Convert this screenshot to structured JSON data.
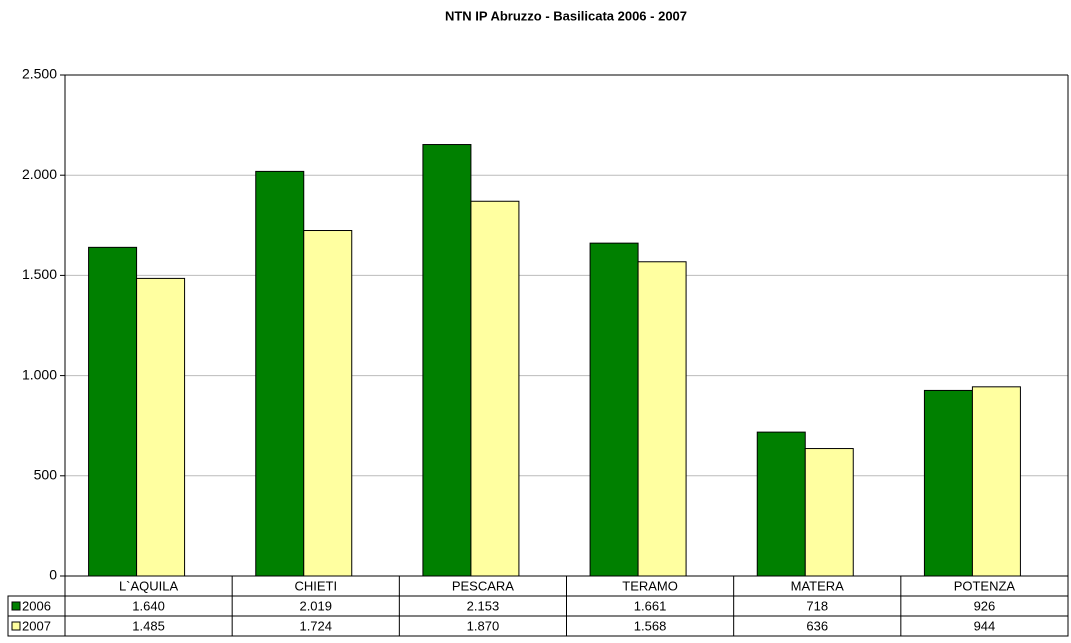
{
  "chart_data": {
    "type": "bar",
    "title": "NTN IP Abruzzo - Basilicata 2006 - 2007",
    "categories": [
      "L`AQUILA",
      "CHIETI",
      "PESCARA",
      "TERAMO",
      "MATERA",
      "POTENZA"
    ],
    "series": [
      {
        "name": "2006",
        "color": "#008000",
        "values": [
          1640,
          2019,
          2153,
          1661,
          718,
          926
        ],
        "value_labels": [
          "1.640",
          "2.019",
          "2.153",
          "1.661",
          "718",
          "926"
        ]
      },
      {
        "name": "2007",
        "color": "#ffffa0",
        "values": [
          1485,
          1724,
          1870,
          1568,
          636,
          944
        ],
        "value_labels": [
          "1.485",
          "1.724",
          "1.870",
          "1.568",
          "636",
          "944"
        ]
      }
    ],
    "ylim": [
      0,
      2500
    ],
    "yticks": [
      0,
      500,
      {
        "value": 1000,
        "label": "1.000"
      },
      {
        "value": 1500,
        "label": "1.500"
      },
      {
        "value": 2000,
        "label": "2.000"
      },
      {
        "value": 2500,
        "label": "2.500"
      }
    ],
    "grid": true
  }
}
